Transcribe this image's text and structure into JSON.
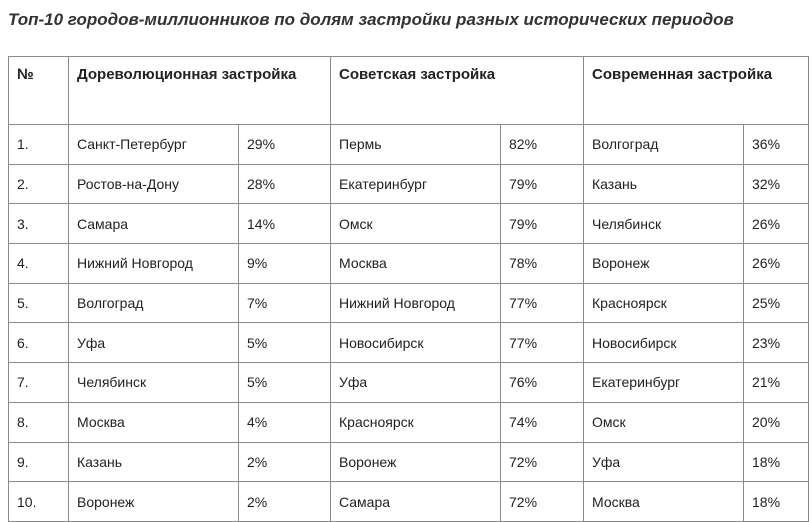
{
  "header": {
    "title": "Топ-10 городов-миллионников по долям застройки разных исторических периодов"
  },
  "table": {
    "columns": [
      "№",
      "Дореволюционная застройка",
      "Советская застройка",
      "Современная застройка"
    ],
    "rows": [
      [
        "1.",
        "Санкт-Петербург",
        "29%",
        "Пермь",
        "82%",
        "Волгоград",
        "36%"
      ],
      [
        "2.",
        "Ростов-на-Дону",
        "28%",
        "Екатеринбург",
        "79%",
        "Казань",
        "32%"
      ],
      [
        "3.",
        "Самара",
        "14%",
        "Омск",
        "79%",
        "Челябинск",
        "26%"
      ],
      [
        "4.",
        "Нижний Новгород",
        "9%",
        "Москва",
        "78%",
        "Воронеж",
        "26%"
      ],
      [
        "5.",
        "Волгоград",
        "7%",
        "Нижний Новгород",
        "77%",
        "Красноярск",
        "25%"
      ],
      [
        "6.",
        "Уфа",
        "5%",
        "Новосибирск",
        "77%",
        "Новосибирск",
        "23%"
      ],
      [
        "7.",
        "Челябинск",
        "5%",
        "Уфа",
        "76%",
        "Екатеринбург",
        "21%"
      ],
      [
        "8.",
        "Москва",
        "4%",
        "Красноярск",
        "74%",
        "Омск",
        "20%"
      ],
      [
        "9.",
        "Казань",
        "2%",
        "Воронеж",
        "72%",
        "Уфа",
        "18%"
      ],
      [
        "10.",
        "Воронеж",
        "2%",
        "Самара",
        "72%",
        "Москва",
        "18%"
      ]
    ]
  }
}
